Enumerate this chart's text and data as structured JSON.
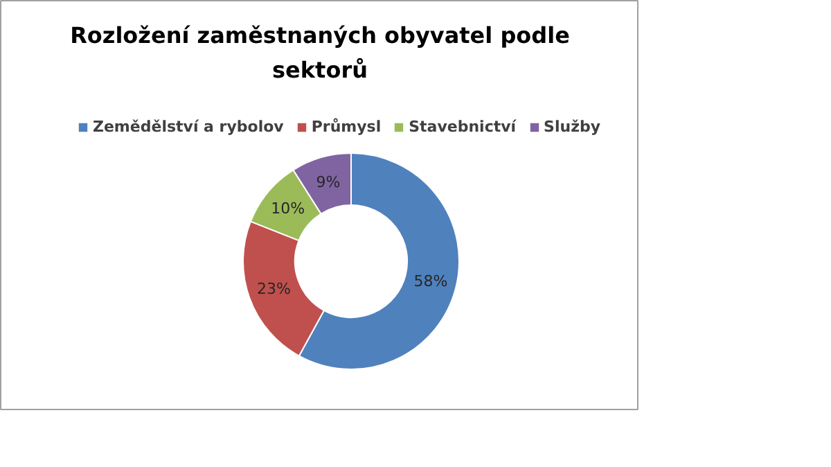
{
  "chart_data": {
    "type": "donut",
    "title": "Rozložení zaměstnaných obyvatel podle sektorů",
    "categories": [
      "Zemědělství a rybolov",
      "Průmysl",
      "Stavebnictví",
      "Služby"
    ],
    "values": [
      58,
      23,
      10,
      9
    ],
    "colors": [
      "#4f81bd",
      "#c0504d",
      "#9bbb59",
      "#8064a2"
    ],
    "value_labels": [
      "58%",
      "23%",
      "10%",
      "9%"
    ],
    "legend": "top"
  }
}
